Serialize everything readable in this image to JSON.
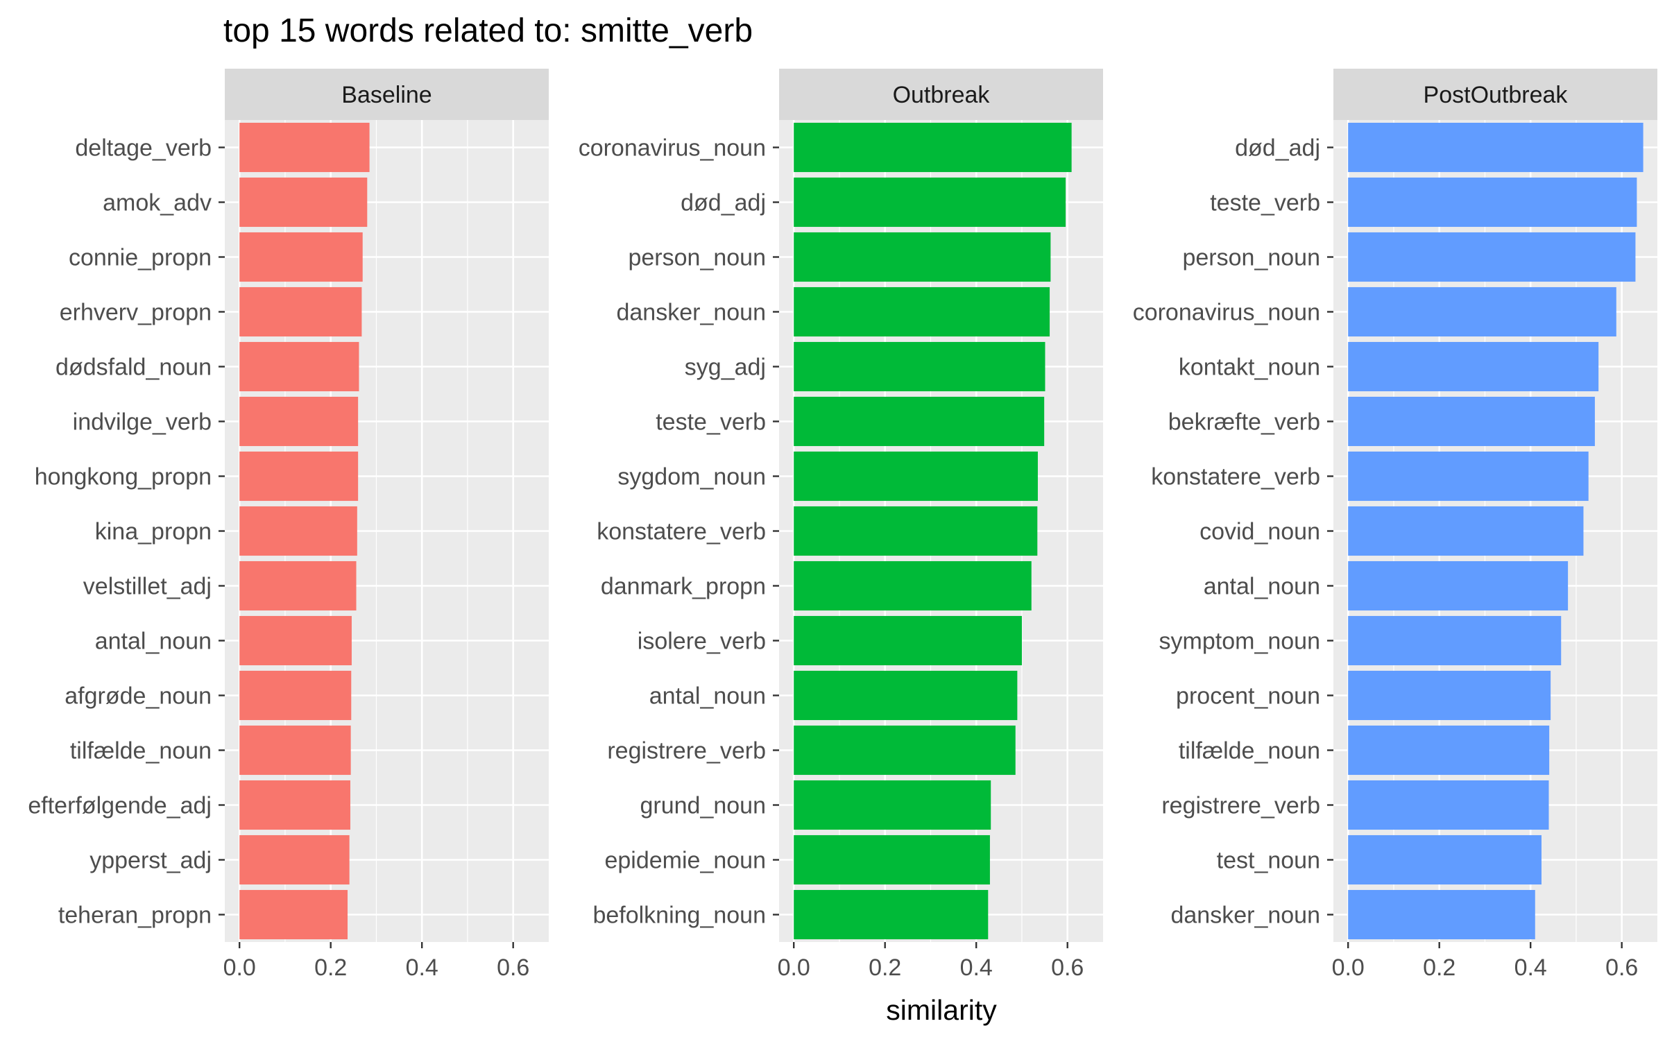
{
  "chart_data": {
    "type": "bar",
    "orientation": "horizontal",
    "title": "top 15 words related to: smitte_verb",
    "xlabel": "similarity",
    "ylabel": "",
    "xlim": [
      0,
      0.68
    ],
    "x_ticks": [
      "0.0",
      "0.2",
      "0.4",
      "0.6"
    ],
    "x_tick_values": [
      0.0,
      0.2,
      0.4,
      0.6
    ],
    "grid": true,
    "legend": "none",
    "panels": [
      {
        "name": "Baseline",
        "color": "#F8766D",
        "categories": [
          "deltage_verb",
          "amok_adv",
          "connie_propn",
          "erhverv_propn",
          "dødsfald_noun",
          "indvilge_verb",
          "hongkong_propn",
          "kina_propn",
          "velstillet_adj",
          "antal_noun",
          "afgrøde_noun",
          "tilfælde_noun",
          "efterfølgende_adj",
          "ypperst_adj",
          "teheran_propn"
        ],
        "values": [
          0.285,
          0.28,
          0.27,
          0.268,
          0.262,
          0.26,
          0.26,
          0.258,
          0.256,
          0.246,
          0.245,
          0.244,
          0.243,
          0.241,
          0.237
        ]
      },
      {
        "name": "Outbreak",
        "color": "#00BA38",
        "categories": [
          "coronavirus_noun",
          "død_adj",
          "person_noun",
          "dansker_noun",
          "syg_adj",
          "teste_verb",
          "sygdom_noun",
          "konstatere_verb",
          "danmark_propn",
          "isolere_verb",
          "antal_noun",
          "registrere_verb",
          "grund_noun",
          "epidemie_noun",
          "befolkning_noun"
        ],
        "values": [
          0.609,
          0.596,
          0.563,
          0.561,
          0.551,
          0.549,
          0.535,
          0.534,
          0.521,
          0.5,
          0.49,
          0.486,
          0.432,
          0.43,
          0.426
        ]
      },
      {
        "name": "PostOutbreak",
        "color": "#619CFF",
        "categories": [
          "død_adj",
          "teste_verb",
          "person_noun",
          "coronavirus_noun",
          "kontakt_noun",
          "bekræfte_verb",
          "konstatere_verb",
          "covid_noun",
          "antal_noun",
          "symptom_noun",
          "procent_noun",
          "tilfælde_noun",
          "registrere_verb",
          "test_noun",
          "dansker_noun"
        ],
        "values": [
          0.647,
          0.633,
          0.63,
          0.588,
          0.549,
          0.541,
          0.527,
          0.516,
          0.482,
          0.467,
          0.444,
          0.441,
          0.44,
          0.424,
          0.41
        ]
      }
    ]
  }
}
